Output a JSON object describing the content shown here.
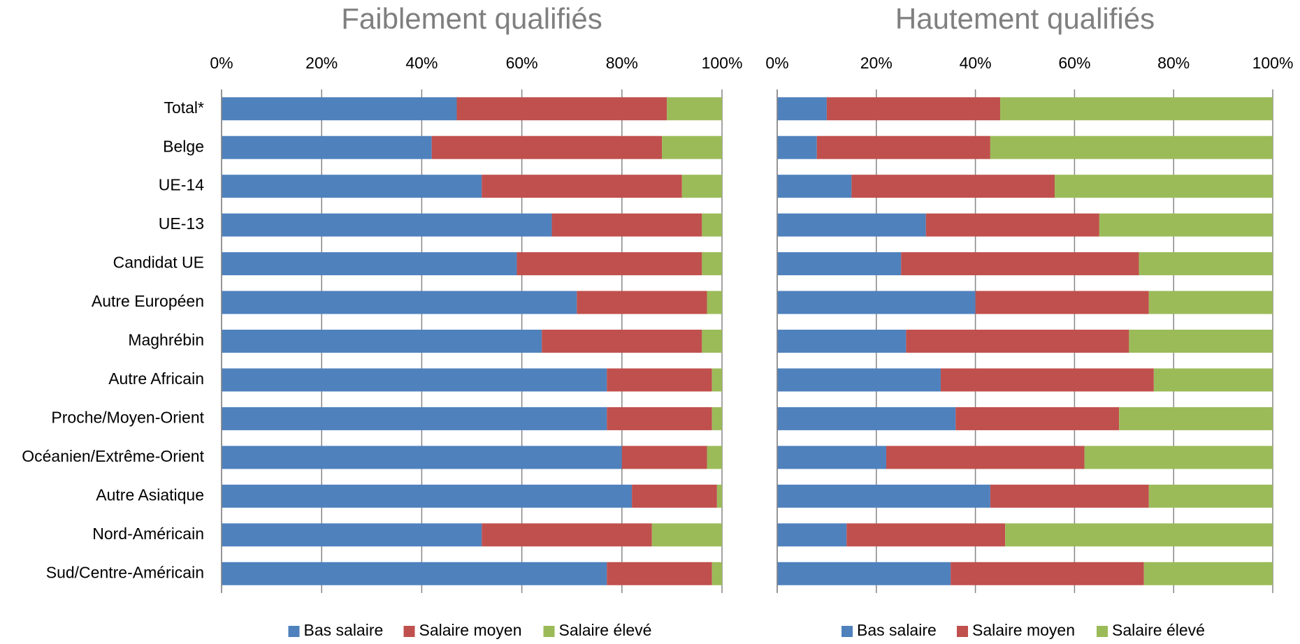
{
  "chart_data": [
    {
      "type": "bar",
      "orientation": "horizontal",
      "stacked": true,
      "title": "Faiblement qualifiés",
      "categories": [
        "Total*",
        "Belge",
        "UE-14",
        "UE-13",
        "Candidat UE",
        "Autre Européen",
        "Maghrébin",
        "Autre Africain",
        "Proche/Moyen-Orient",
        "Océanien/Extrême-Orient",
        "Autre Asiatique",
        "Nord-Américain",
        "Sud/Centre-Américain"
      ],
      "series": [
        {
          "name": "Bas salaire",
          "color": "#4f81bd",
          "values": [
            47,
            42,
            52,
            66,
            59,
            71,
            64,
            77,
            77,
            80,
            82,
            52,
            77
          ]
        },
        {
          "name": "Salaire moyen",
          "color": "#c0504d",
          "values": [
            42,
            46,
            40,
            30,
            37,
            26,
            32,
            21,
            21,
            17,
            17,
            34,
            21
          ]
        },
        {
          "name": "Salaire élevé",
          "color": "#9bbb59",
          "values": [
            11,
            12,
            8,
            4,
            4,
            3,
            4,
            2,
            2,
            3,
            1,
            14,
            2
          ]
        }
      ],
      "xlim": [
        0,
        100
      ],
      "xticks": [
        {
          "value": 0,
          "label": "0%"
        },
        {
          "value": 20,
          "label": "20%"
        },
        {
          "value": 40,
          "label": "40%"
        },
        {
          "value": 60,
          "label": "60%"
        },
        {
          "value": 80,
          "label": "80%"
        },
        {
          "value": 100,
          "label": "100%"
        }
      ],
      "grid": true,
      "legend": "bottom"
    },
    {
      "type": "bar",
      "orientation": "horizontal",
      "stacked": true,
      "title": "Hautement qualifiés",
      "categories": [
        null,
        null,
        null,
        null,
        null,
        null,
        null,
        null,
        null,
        null,
        null,
        null,
        null
      ],
      "series": [
        {
          "name": "Bas salaire",
          "color": "#4f81bd",
          "values": [
            10,
            8,
            15,
            30,
            25,
            40,
            26,
            33,
            36,
            22,
            43,
            14,
            35
          ]
        },
        {
          "name": "Salaire moyen",
          "color": "#c0504d",
          "values": [
            35,
            35,
            41,
            35,
            48,
            35,
            45,
            43,
            33,
            40,
            32,
            32,
            39
          ]
        },
        {
          "name": "Salaire élevé",
          "color": "#9bbb59",
          "values": [
            55,
            57,
            44,
            35,
            27,
            25,
            29,
            24,
            31,
            38,
            25,
            54,
            26
          ]
        }
      ],
      "xlim": [
        0,
        100
      ],
      "xticks": [
        {
          "value": 0,
          "label": "0%"
        },
        {
          "value": 20,
          "label": "20%"
        },
        {
          "value": 40,
          "label": "40%"
        },
        {
          "value": 60,
          "label": "60%"
        },
        {
          "value": 80,
          "label": "80%"
        },
        {
          "value": 100,
          "label": "100%"
        }
      ],
      "grid": true,
      "legend": "bottom"
    }
  ]
}
